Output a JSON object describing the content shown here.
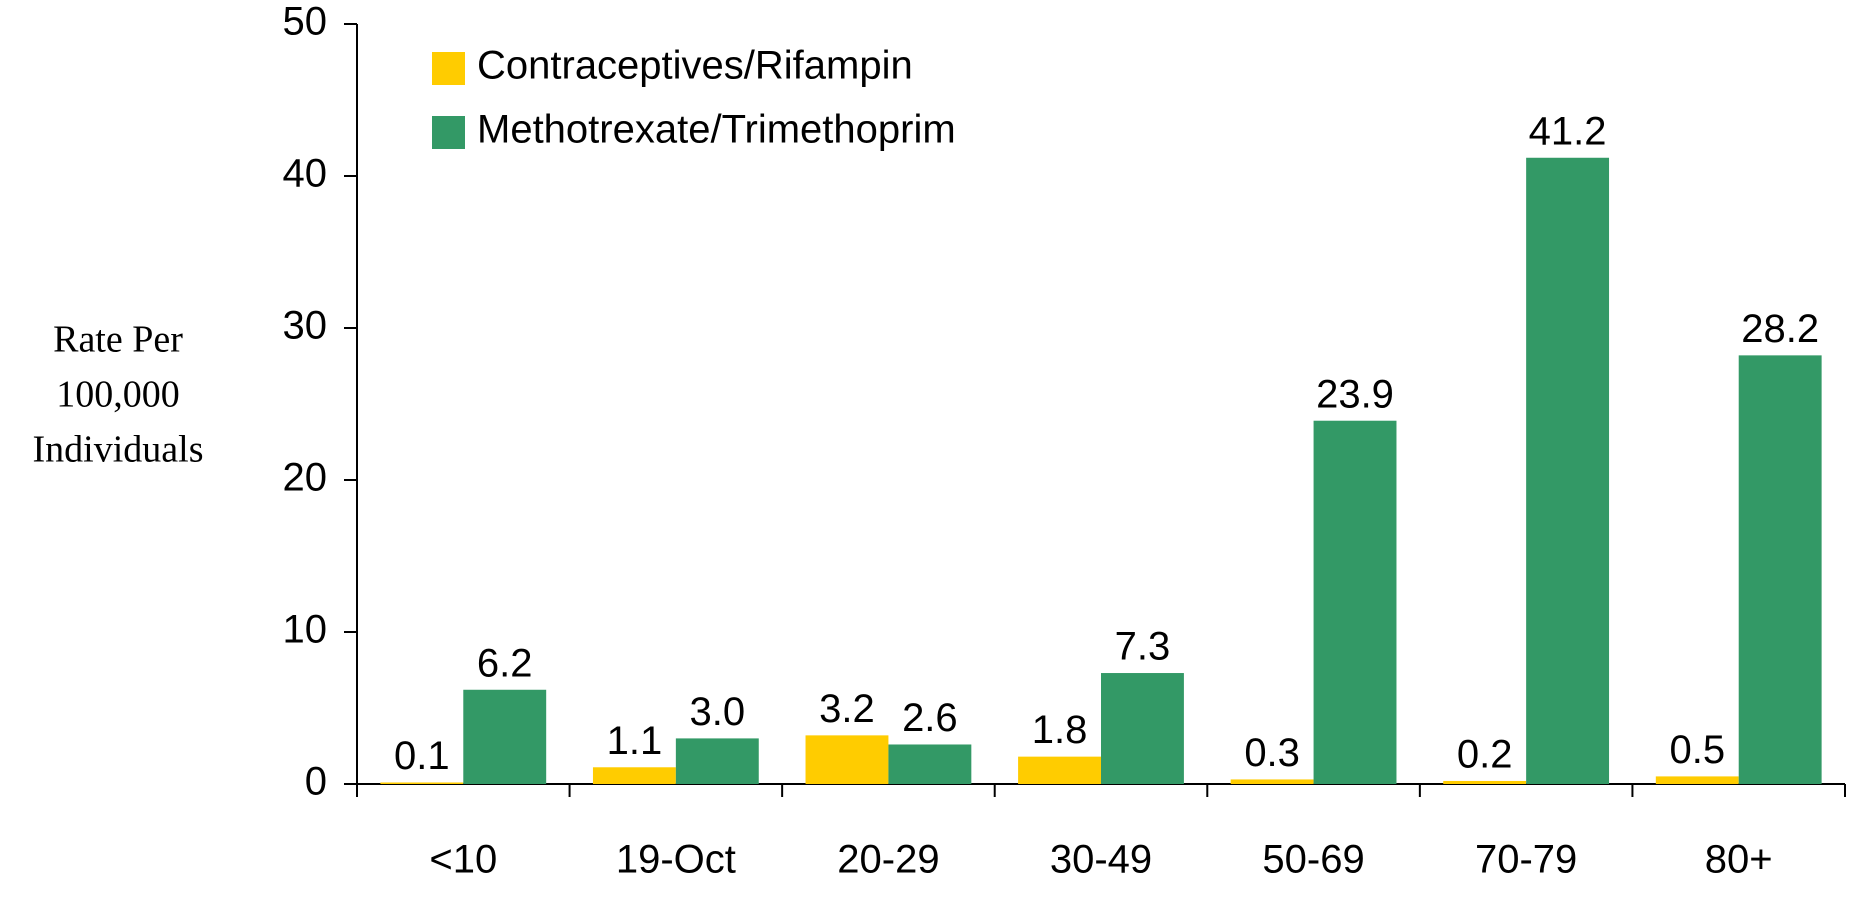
{
  "chart_data": {
    "type": "bar",
    "ylabel": [
      "Rate Per",
      "100,000",
      "Individuals"
    ],
    "categories": [
      "<10",
      "19-Oct",
      "20-29",
      "30-49",
      "50-69",
      "70-79",
      "80+"
    ],
    "series": [
      {
        "name": "Contraceptives/Rifampin",
        "color": "#ffcc00",
        "values": [
          0.1,
          1.1,
          3.2,
          1.8,
          0.3,
          0.2,
          0.5
        ],
        "value_labels": [
          "0.1",
          "1.1",
          "3.2",
          "1.8",
          "0.3",
          "0.2",
          "0.5"
        ]
      },
      {
        "name": "Methotrexate/Trimethoprim",
        "color": "#339966",
        "values": [
          6.2,
          3.0,
          2.6,
          7.3,
          23.9,
          41.2,
          28.2
        ],
        "value_labels": [
          "6.2",
          "3.0",
          "2.6",
          "7.3",
          "23.9",
          "41.2",
          "28.2"
        ]
      }
    ],
    "ylim": [
      0,
      50
    ],
    "yticks": [
      0,
      10,
      20,
      30,
      40,
      50
    ],
    "grid": false,
    "legend": "top-left"
  }
}
